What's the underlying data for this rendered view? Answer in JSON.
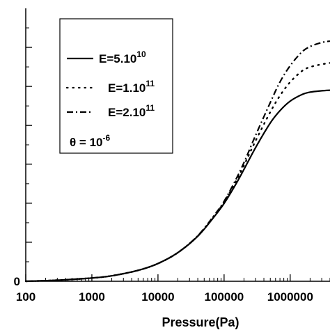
{
  "chart_data": {
    "type": "line",
    "xlabel": "Pressure(Pa)",
    "ylabel": "",
    "xscale": "log",
    "xlim": [
      100,
      4000000
    ],
    "ylim": [
      0,
      1.0
    ],
    "x_tick_labels": [
      "100",
      "1000",
      "10000",
      "100000",
      "1000000"
    ],
    "x_ticks": [
      100,
      1000,
      10000,
      100000,
      1000000
    ],
    "y_ticks": [
      0,
      0.143,
      0.286,
      0.429,
      0.571,
      0.714,
      0.857
    ],
    "y_tick_labels": [
      "0",
      "",
      "",
      "",
      "",
      "",
      ""
    ],
    "grid": false,
    "legend_position": "top-left",
    "series": [
      {
        "name": "E=5.10",
        "name_sup": "10",
        "style": "solid",
        "x": [
          100,
          300,
          1000,
          2000,
          5000,
          10000,
          20000,
          40000,
          70000,
          100000,
          150000,
          200000,
          300000,
          500000,
          700000,
          1000000,
          1500000,
          2000000,
          3000000,
          4000000
        ],
        "y": [
          0.0,
          0.004,
          0.012,
          0.02,
          0.04,
          0.065,
          0.105,
          0.165,
          0.235,
          0.285,
          0.355,
          0.41,
          0.49,
          0.58,
          0.625,
          0.66,
          0.684,
          0.693,
          0.698,
          0.7
        ]
      },
      {
        "name": "E=1.10",
        "name_sup": "11",
        "style": "dotted",
        "x": [
          100,
          300,
          1000,
          2000,
          5000,
          10000,
          20000,
          40000,
          70000,
          100000,
          150000,
          200000,
          300000,
          500000,
          700000,
          1000000,
          1500000,
          2000000,
          3000000,
          4000000
        ],
        "y": [
          0.0,
          0.004,
          0.012,
          0.02,
          0.04,
          0.065,
          0.105,
          0.166,
          0.238,
          0.29,
          0.365,
          0.425,
          0.515,
          0.62,
          0.68,
          0.73,
          0.77,
          0.785,
          0.795,
          0.8
        ]
      },
      {
        "name": "E=2.10",
        "name_sup": "11",
        "style": "dashdot",
        "x": [
          100,
          300,
          1000,
          2000,
          5000,
          10000,
          20000,
          40000,
          70000,
          100000,
          150000,
          200000,
          300000,
          500000,
          700000,
          1000000,
          1500000,
          2000000,
          3000000,
          4000000
        ],
        "y": [
          0.0,
          0.004,
          0.012,
          0.02,
          0.04,
          0.065,
          0.105,
          0.167,
          0.24,
          0.293,
          0.372,
          0.435,
          0.535,
          0.655,
          0.73,
          0.79,
          0.84,
          0.86,
          0.875,
          0.88
        ]
      }
    ],
    "annotation": {
      "prefix": "θ = 10",
      "sup": "-6"
    }
  }
}
